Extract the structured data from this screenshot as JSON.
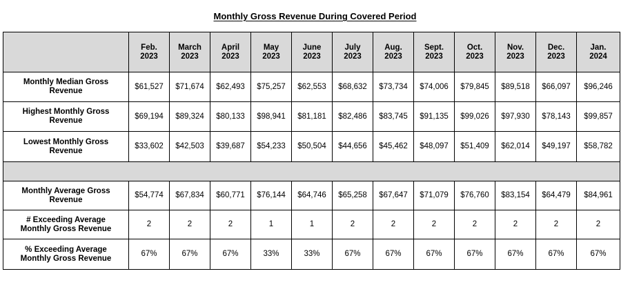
{
  "title": "Monthly Gross Revenue During Covered Period",
  "header": {
    "corner": "",
    "months": [
      [
        "Feb.",
        "2023"
      ],
      [
        "March",
        "2023"
      ],
      [
        "April",
        "2023"
      ],
      [
        "May",
        "2023"
      ],
      [
        "June",
        "2023"
      ],
      [
        "July",
        "2023"
      ],
      [
        "Aug.",
        "2023"
      ],
      [
        "Sept.",
        "2023"
      ],
      [
        "Oct.",
        "2023"
      ],
      [
        "Nov.",
        "2023"
      ],
      [
        "Dec.",
        "2023"
      ],
      [
        "Jan.",
        "2024"
      ]
    ]
  },
  "rows_top": [
    {
      "label": [
        "Monthly Median Gross",
        "Revenue"
      ],
      "values": [
        "$61,527",
        "$71,674",
        "$62,493",
        "$75,257",
        "$62,553",
        "$68,632",
        "$73,734",
        "$74,006",
        "$79,845",
        "$89,518",
        "$66,097",
        "$96,246"
      ]
    },
    {
      "label": [
        "Highest Monthly Gross",
        "Revenue"
      ],
      "values": [
        "$69,194",
        "$89,324",
        "$80,133",
        "$98,941",
        "$81,181",
        "$82,486",
        "$83,745",
        "$91,135",
        "$99,026",
        "$97,930",
        "$78,143",
        "$99,857"
      ]
    },
    {
      "label": [
        "Lowest Monthly Gross",
        "Revenue"
      ],
      "values": [
        "$33,602",
        "$42,503",
        "$39,687",
        "$54,233",
        "$50,504",
        "$44,656",
        "$45,462",
        "$48,097",
        "$51,409",
        "$62,014",
        "$49,197",
        "$58,782"
      ]
    }
  ],
  "rows_bottom": [
    {
      "label": [
        "Monthly Average Gross",
        "Revenue"
      ],
      "values": [
        "$54,774",
        "$67,834",
        "$60,771",
        "$76,144",
        "$64,746",
        "$65,258",
        "$67,647",
        "$71,079",
        "$76,760",
        "$83,154",
        "$64,479",
        "$84,961"
      ]
    },
    {
      "label": [
        "# Exceeding Average",
        "Monthly Gross Revenue"
      ],
      "values": [
        "2",
        "2",
        "2",
        "1",
        "1",
        "2",
        "2",
        "2",
        "2",
        "2",
        "2",
        "2"
      ]
    },
    {
      "label": [
        "% Exceeding Average",
        "Monthly Gross Revenue"
      ],
      "values": [
        "67%",
        "67%",
        "67%",
        "33%",
        "33%",
        "67%",
        "67%",
        "67%",
        "67%",
        "67%",
        "67%",
        "67%"
      ]
    }
  ]
}
